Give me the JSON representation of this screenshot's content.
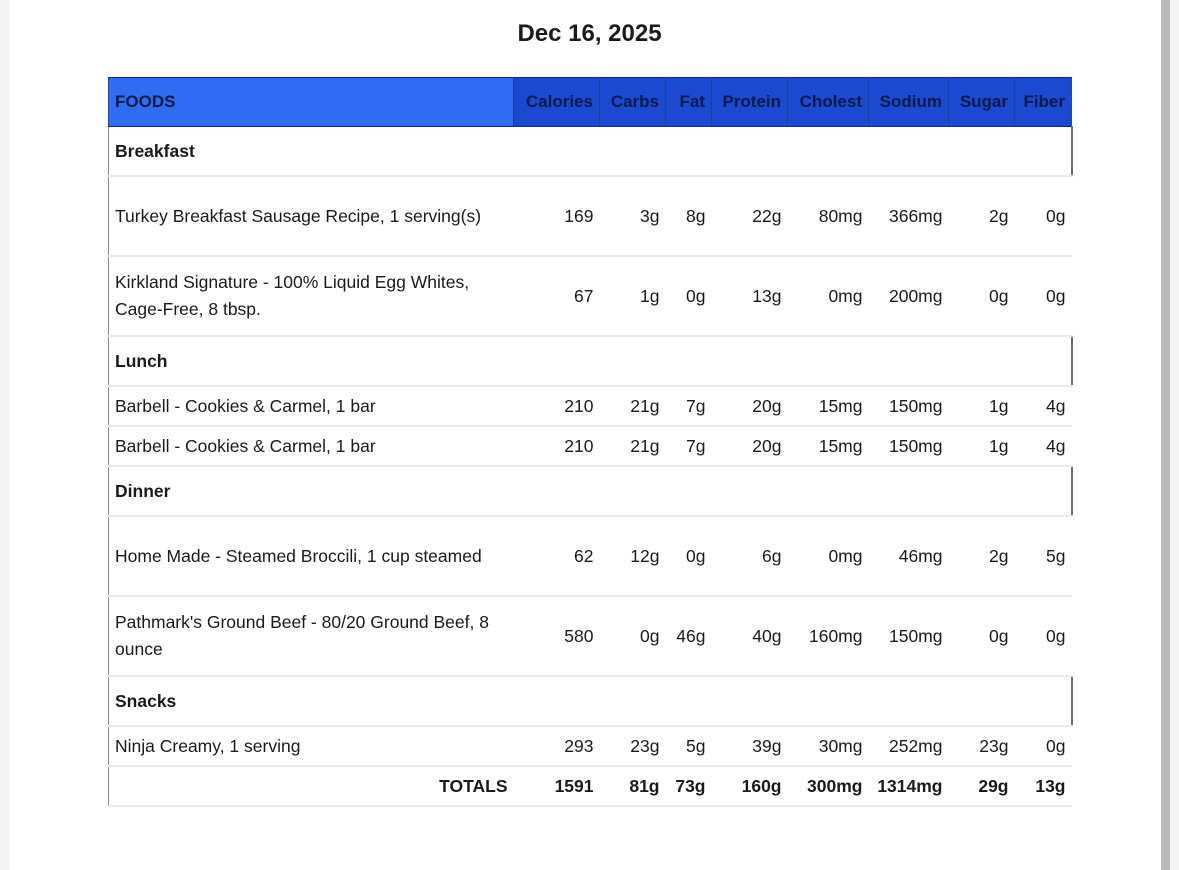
{
  "date": "Dec 16, 2025",
  "columns": [
    "FOODS",
    "Calories",
    "Carbs",
    "Fat",
    "Protein",
    "Cholest",
    "Sodium",
    "Sugar",
    "Fiber"
  ],
  "meals": [
    {
      "name": "Breakfast",
      "items": [
        {
          "food": "Turkey Breakfast Sausage Recipe, 1 serving(s)",
          "values": [
            "169",
            "3g",
            "8g",
            "22g",
            "80mg",
            "366mg",
            "2g",
            "0g"
          ]
        },
        {
          "food": "Kirkland Signature - 100% Liquid Egg Whites, Cage-Free, 8 tbsp.",
          "values": [
            "67",
            "1g",
            "0g",
            "13g",
            "0mg",
            "200mg",
            "0g",
            "0g"
          ]
        }
      ]
    },
    {
      "name": "Lunch",
      "items": [
        {
          "food": "Barbell - Cookies & Carmel, 1 bar",
          "values": [
            "210",
            "21g",
            "7g",
            "20g",
            "15mg",
            "150mg",
            "1g",
            "4g"
          ]
        },
        {
          "food": "Barbell - Cookies & Carmel, 1 bar",
          "values": [
            "210",
            "21g",
            "7g",
            "20g",
            "15mg",
            "150mg",
            "1g",
            "4g"
          ]
        }
      ]
    },
    {
      "name": "Dinner",
      "items": [
        {
          "food": "Home Made - Steamed Broccili, 1 cup steamed",
          "values": [
            "62",
            "12g",
            "0g",
            "6g",
            "0mg",
            "46mg",
            "2g",
            "5g"
          ]
        },
        {
          "food": "Pathmark's Ground Beef - 80/20 Ground Beef, 8 ounce",
          "values": [
            "580",
            "0g",
            "46g",
            "40g",
            "160mg",
            "150mg",
            "0g",
            "0g"
          ]
        }
      ]
    },
    {
      "name": "Snacks",
      "items": [
        {
          "food": "Ninja Creamy, 1 serving",
          "values": [
            "293",
            "23g",
            "5g",
            "39g",
            "30mg",
            "252mg",
            "23g",
            "0g"
          ]
        }
      ]
    }
  ],
  "totals": {
    "label": "TOTALS",
    "values": [
      "1591",
      "81g",
      "73g",
      "160g",
      "300mg",
      "1314mg",
      "29g",
      "13g"
    ]
  }
}
